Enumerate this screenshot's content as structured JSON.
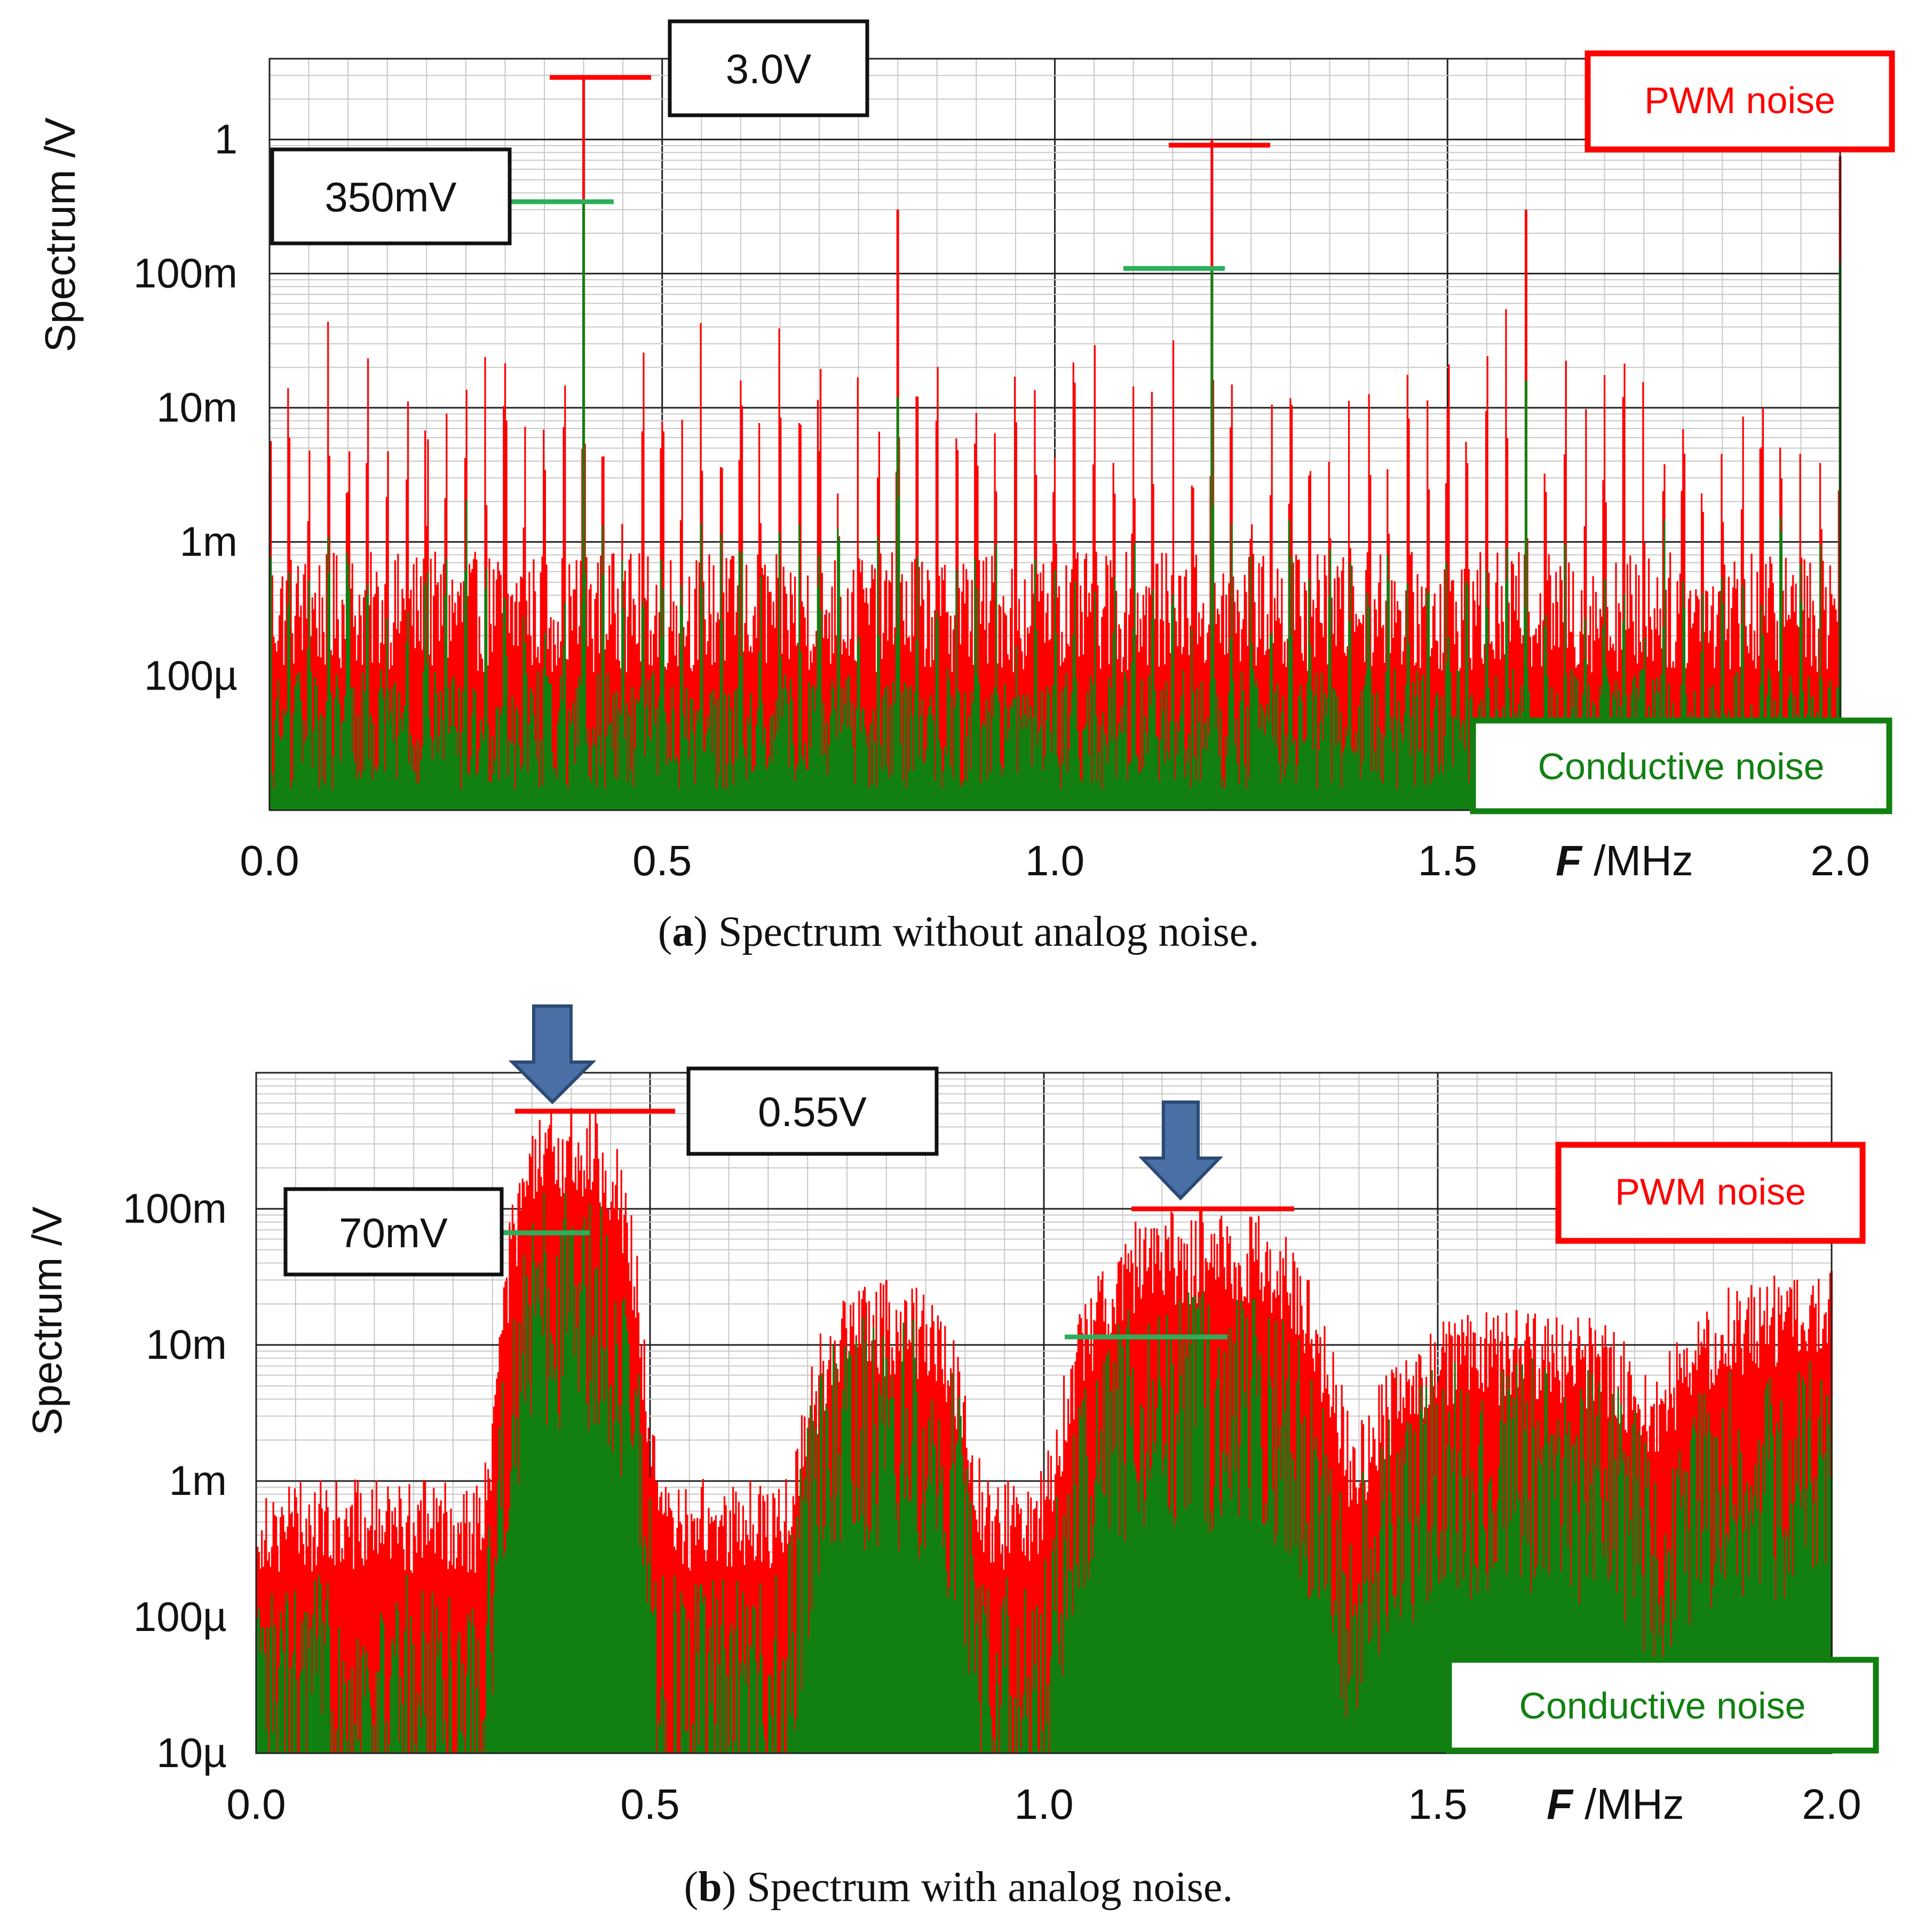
{
  "colors": {
    "pwm": "#ff0000",
    "conductive": "#118011",
    "marker_green": "#2cae5a",
    "arrow": "#4a6fa5",
    "arrow_stroke": "#2b4a75",
    "grid_major": "#222222",
    "grid_minor": "#c8c8c8",
    "box_border": "#111111"
  },
  "charts": [
    {
      "panel": "a",
      "caption_label": "a",
      "caption_text": ") Spectrum without analog noise.",
      "ylabel": "Spectrum /V",
      "xlabel_var": "F",
      "xlabel_unit": " /MHz",
      "legend_pwm": "PWM noise",
      "legend_conductive": "Conductive noise",
      "annotations": [
        {
          "text": "3.0V",
          "type": "pwm"
        },
        {
          "text": "350mV",
          "type": "conductive"
        }
      ]
    },
    {
      "panel": "b",
      "caption_label": "b",
      "caption_text": ") Spectrum with analog noise.",
      "ylabel": "Spectrum /V",
      "xlabel_var": "F",
      "xlabel_unit": " /MHz",
      "legend_pwm": "PWM noise",
      "legend_conductive": "Conductive noise",
      "annotations": [
        {
          "text": "0.55V",
          "type": "pwm"
        },
        {
          "text": "70mV",
          "type": "conductive"
        }
      ]
    }
  ],
  "chart_data": [
    {
      "type": "line",
      "panel": "a",
      "title": "Spectrum without analog noise.",
      "xlabel": "F /MHz",
      "ylabel": "Spectrum /V",
      "xlim": [
        0.0,
        2.0
      ],
      "ylim": [
        1e-05,
        4.0
      ],
      "y_scale": "log",
      "x_ticks": [
        "0.0",
        "0.5",
        "1.0",
        "1.5",
        "2.0"
      ],
      "y_ticks": [
        {
          "value": 1,
          "label": "1"
        },
        {
          "value": 0.1,
          "label": "100m"
        },
        {
          "value": 0.01,
          "label": "10m"
        },
        {
          "value": 0.001,
          "label": "1m"
        },
        {
          "value": 0.0001,
          "label": "100µ"
        }
      ],
      "grid": true,
      "series": [
        {
          "name": "PWM noise",
          "color": "#ff0000",
          "floor_V": 0.0003,
          "peaks": [
            {
              "x": 0.4,
              "y": 3.0
            },
            {
              "x": 0.8,
              "y": 0.3
            },
            {
              "x": 1.2,
              "y": 1.0
            },
            {
              "x": 1.6,
              "y": 0.3
            },
            {
              "x": 2.0,
              "y": 0.75
            }
          ]
        },
        {
          "name": "Conductive noise",
          "color": "#118011",
          "floor_V": 4e-05,
          "peaks": [
            {
              "x": 0.4,
              "y": 0.35
            },
            {
              "x": 0.8,
              "y": 0.012
            },
            {
              "x": 1.2,
              "y": 0.11
            },
            {
              "x": 1.6,
              "y": 0.016
            },
            {
              "x": 2.0,
              "y": 0.12
            }
          ]
        }
      ],
      "annotations": [
        {
          "text": "3.0V",
          "x": 0.4,
          "y": 3.0,
          "series": "PWM noise"
        },
        {
          "text": "350mV",
          "x": 0.4,
          "y": 0.35,
          "series": "Conductive noise"
        }
      ],
      "legend_placement": "top-right (PWM noise), bottom-right (Conductive noise)"
    },
    {
      "type": "line",
      "panel": "b",
      "title": "Spectrum with analog noise.",
      "xlabel": "F /MHz",
      "ylabel": "Spectrum /V",
      "xlim": [
        0.0,
        2.0
      ],
      "ylim": [
        1e-05,
        1.0
      ],
      "y_scale": "log",
      "x_ticks": [
        "0.0",
        "0.5",
        "1.0",
        "1.5",
        "2.0"
      ],
      "y_ticks": [
        {
          "value": 0.1,
          "label": "100m"
        },
        {
          "value": 0.01,
          "label": "10m"
        },
        {
          "value": 0.001,
          "label": "1m"
        },
        {
          "value": 0.0001,
          "label": "100µ"
        },
        {
          "value": 1e-05,
          "label": "10µ"
        }
      ],
      "grid": true,
      "series": [
        {
          "name": "PWM noise",
          "color": "#ff0000",
          "floor_V": 0.00065,
          "humps": [
            {
              "x": 0.4,
              "width_MHz": 0.07,
              "y": 0.55
            },
            {
              "x": 0.8,
              "width_MHz": 0.09,
              "y": 0.03
            },
            {
              "x": 1.2,
              "width_MHz": 0.14,
              "y": 0.1
            },
            {
              "x": 1.6,
              "width_MHz": 0.17,
              "y": 0.018
            },
            {
              "x": 2.0,
              "width_MHz": 0.2,
              "y": 0.035
            }
          ]
        },
        {
          "name": "Conductive noise",
          "color": "#118011",
          "floor_V": 6e-05,
          "humps": [
            {
              "x": 0.4,
              "width_MHz": 0.07,
              "y": 0.07
            },
            {
              "x": 0.8,
              "width_MHz": 0.09,
              "y": 0.008
            },
            {
              "x": 1.2,
              "width_MHz": 0.14,
              "y": 0.012
            },
            {
              "x": 1.6,
              "width_MHz": 0.17,
              "y": 0.004
            },
            {
              "x": 2.0,
              "width_MHz": 0.2,
              "y": 0.004
            }
          ]
        }
      ],
      "annotations": [
        {
          "text": "0.55V",
          "x": 0.4,
          "y": 0.55,
          "series": "PWM noise"
        },
        {
          "text": "70mV",
          "x": 0.4,
          "y": 0.07,
          "series": "Conductive noise"
        }
      ],
      "arrows": [
        {
          "x": 0.4,
          "y": 0.55
        },
        {
          "x": 1.2,
          "y": 0.1
        }
      ],
      "legend_placement": "top-right (PWM noise), bottom-right (Conductive noise)"
    }
  ]
}
